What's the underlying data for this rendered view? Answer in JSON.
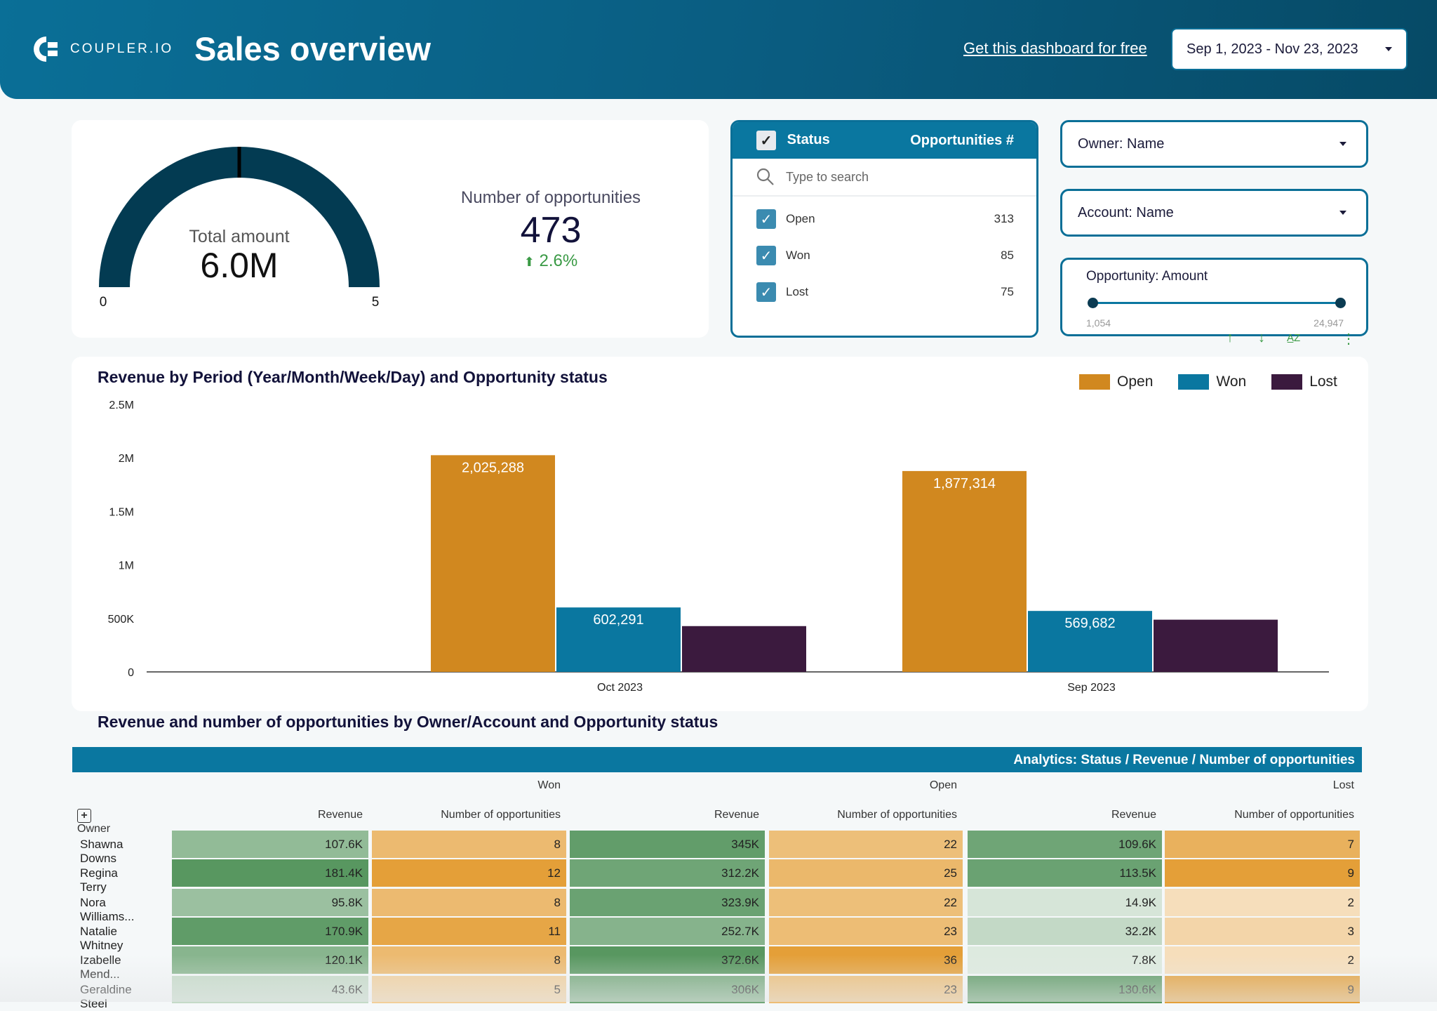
{
  "header": {
    "logo_text": "COUPLER.IO",
    "title": "Sales overview",
    "cta": "Get this dashboard for free",
    "date_range": "Sep 1, 2023 - Nov 23, 2023"
  },
  "gauge": {
    "label": "Total amount",
    "value": "6.0M",
    "min": "0",
    "max": "5",
    "target_fraction": 0.5,
    "color": "#033b52"
  },
  "opportunities": {
    "label": "Number of opportunities",
    "value": "473",
    "delta": "2.6%"
  },
  "status_filter": {
    "header_label": "Status",
    "header_count": "Opportunities #",
    "search_placeholder": "Type to search",
    "items": [
      {
        "label": "Open",
        "count": "313"
      },
      {
        "label": "Won",
        "count": "85"
      },
      {
        "label": "Lost",
        "count": "75"
      }
    ]
  },
  "filters": {
    "owner": "Owner: Name",
    "account": "Account: Name",
    "amount_label": "Opportunity: Amount",
    "amount_min": "1,054",
    "amount_max": "24,947"
  },
  "chart_data": {
    "type": "bar",
    "title": "Revenue by Period (Year/Month/Week/Day) and Opportunity status",
    "categories": [
      "Oct 2023",
      "Sep 2023"
    ],
    "series": [
      {
        "name": "Open",
        "color": "#d1881f",
        "values": [
          2025288,
          1877314
        ],
        "labels": [
          "2,025,288",
          "1,877,314"
        ]
      },
      {
        "name": "Won",
        "color": "#0a77a0",
        "values": [
          602291,
          569682
        ],
        "labels": [
          "602,291",
          "569,682"
        ]
      },
      {
        "name": "Lost",
        "color": "#3b1a3e",
        "values": [
          428000,
          488000
        ],
        "labels": [
          "",
          ""
        ]
      }
    ],
    "yticks": [
      "0",
      "500K",
      "1M",
      "1.5M",
      "2M",
      "2.5M"
    ],
    "ylim": [
      0,
      2500000
    ],
    "legend": "top-right"
  },
  "table": {
    "title": "Revenue and number of opportunities by Owner/Account and Opportunity status",
    "band": "Analytics: Status / Revenue / Number of opportunities",
    "groups": [
      "Won",
      "Open",
      "Lost"
    ],
    "owner_header": "Owner",
    "col_headers": [
      "Revenue",
      "Number of opportunities",
      "Revenue",
      "Number of opportunities",
      "Revenue",
      "Number of opportunities"
    ],
    "rows": [
      {
        "owner": "Shawna Downs",
        "cells": [
          "107.6K",
          "8",
          "345K",
          "22",
          "109.6K",
          "7"
        ],
        "raw": [
          107.6,
          8,
          345,
          22,
          109.6,
          7
        ]
      },
      {
        "owner": "Regina Terry",
        "cells": [
          "181.4K",
          "12",
          "312.2K",
          "25",
          "113.5K",
          "9"
        ],
        "raw": [
          181.4,
          12,
          312.2,
          25,
          113.5,
          9
        ]
      },
      {
        "owner": "Nora Williams...",
        "cells": [
          "95.8K",
          "8",
          "323.9K",
          "22",
          "14.9K",
          "2"
        ],
        "raw": [
          95.8,
          8,
          323.9,
          22,
          14.9,
          2
        ]
      },
      {
        "owner": "Natalie Whitney",
        "cells": [
          "170.9K",
          "11",
          "252.7K",
          "23",
          "32.2K",
          "3"
        ],
        "raw": [
          170.9,
          11,
          252.7,
          23,
          32.2,
          3
        ]
      },
      {
        "owner": "Izabelle Mend...",
        "cells": [
          "120.1K",
          "8",
          "372.6K",
          "36",
          "7.8K",
          "2"
        ],
        "raw": [
          120.1,
          8,
          372.6,
          36,
          7.8,
          2
        ]
      },
      {
        "owner": "Geraldine Steel",
        "cells": [
          "43.6K",
          "5",
          "306K",
          "23",
          "130.6K",
          "9"
        ],
        "raw": [
          43.6,
          5,
          306,
          23,
          130.6,
          9
        ]
      }
    ]
  }
}
